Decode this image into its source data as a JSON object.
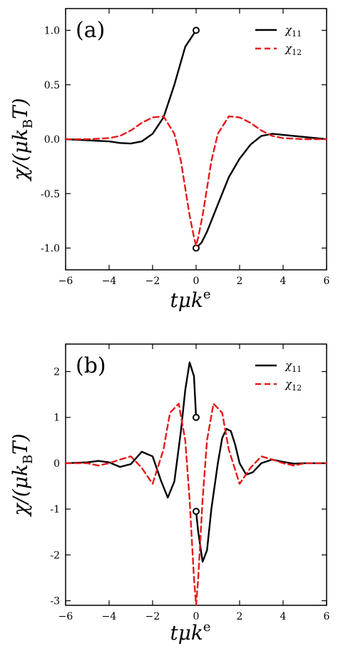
{
  "chart_data": [
    {
      "type": "line",
      "panel_label": "(a)",
      "xlabel": "tμk",
      "xlabel_sup": "e",
      "ylabel": "χ/(μk",
      "ylabel_sub": "B",
      "ylabel_tail": "T)",
      "xlim": [
        -6,
        6
      ],
      "ylim": [
        -1.2,
        1.2
      ],
      "xticks": [
        -6,
        -4,
        -2,
        0,
        2,
        4,
        6
      ],
      "xtick_labels": [
        "−6",
        "−4",
        "−2",
        "0",
        "2",
        "4",
        "6"
      ],
      "yticks": [
        -1.0,
        -0.5,
        0.0,
        0.5,
        1.0
      ],
      "ytick_labels": [
        "-1.0",
        "-0.5",
        "0.0",
        "0.5",
        "1.0"
      ],
      "legend_position": "top-right",
      "grid": false,
      "series": [
        {
          "name": "χ",
          "name_sub": "11",
          "style": "solid",
          "color": "#000000",
          "segments": [
            {
              "x": [
                -6,
                -5,
                -4,
                -3.5,
                -3,
                -2.5,
                -2,
                -1.5,
                -1,
                -0.5,
                0
              ],
              "y": [
                0,
                -0.01,
                -0.02,
                -0.035,
                -0.04,
                -0.02,
                0.05,
                0.2,
                0.5,
                0.85,
                1.0
              ]
            },
            {
              "x": [
                0,
                0.25,
                0.5,
                1,
                1.5,
                2,
                2.5,
                3,
                3.5,
                4,
                5,
                6
              ],
              "y": [
                -1.0,
                -0.95,
                -0.85,
                -0.6,
                -0.35,
                -0.18,
                -0.05,
                0.03,
                0.05,
                0.04,
                0.02,
                0
              ]
            }
          ],
          "open_markers": [
            [
              0,
              1.0
            ],
            [
              0,
              -1.0
            ]
          ]
        },
        {
          "name": "χ",
          "name_sub": "12",
          "style": "dashed",
          "color": "#e41a1c",
          "segments": [
            {
              "x": [
                -6,
                -5,
                -4,
                -3.5,
                -3,
                -2.5,
                -2,
                -1.5,
                -1,
                -0.7,
                -0.5,
                -0.3,
                -0.1,
                0,
                0.1,
                0.3,
                0.5,
                0.7,
                1,
                1.5,
                2,
                2.5,
                3,
                3.5,
                4,
                5,
                6
              ],
              "y": [
                0,
                0,
                0.01,
                0.03,
                0.08,
                0.15,
                0.2,
                0.21,
                0.05,
                -0.2,
                -0.45,
                -0.7,
                -0.9,
                -0.98,
                -0.9,
                -0.7,
                -0.45,
                -0.2,
                0.05,
                0.21,
                0.2,
                0.15,
                0.08,
                0.03,
                0.01,
                0,
                0
              ]
            }
          ],
          "open_markers": []
        }
      ]
    },
    {
      "type": "line",
      "panel_label": "(b)",
      "xlabel": "tμk",
      "xlabel_sup": "e",
      "ylabel": "χ/(μk",
      "ylabel_sub": "B",
      "ylabel_tail": "T)",
      "xlim": [
        -6,
        6
      ],
      "ylim": [
        -3.1,
        2.6
      ],
      "xticks": [
        -6,
        -4,
        -2,
        0,
        2,
        4,
        6
      ],
      "xtick_labels": [
        "−6",
        "−4",
        "−2",
        "0",
        "2",
        "4",
        "6"
      ],
      "yticks": [
        -3,
        -2,
        -1,
        0,
        1,
        2
      ],
      "ytick_labels": [
        "-3",
        "-2",
        "-1",
        "0",
        "1",
        "2"
      ],
      "legend_position": "top-right",
      "grid": false,
      "series": [
        {
          "name": "χ",
          "name_sub": "11",
          "style": "solid",
          "color": "#000000",
          "segments": [
            {
              "x": [
                -6,
                -5,
                -4.5,
                -4,
                -3.5,
                -3,
                -2.5,
                -2,
                -1.6,
                -1.3,
                -1,
                -0.7,
                -0.5,
                -0.3,
                -0.1,
                0
              ],
              "y": [
                0,
                0.02,
                0.05,
                0.02,
                -0.08,
                -0.02,
                0.25,
                0.15,
                -0.4,
                -0.75,
                -0.4,
                0.7,
                1.6,
                2.2,
                1.9,
                1.0
              ]
            },
            {
              "x": [
                0,
                0.1,
                0.3,
                0.5,
                0.7,
                1,
                1.2,
                1.4,
                1.6,
                1.8,
                2,
                2.3,
                2.6,
                3,
                3.5,
                4,
                4.5,
                5,
                6
              ],
              "y": [
                -1.05,
                -1.5,
                -2.15,
                -1.9,
                -1.0,
                0.0,
                0.55,
                0.75,
                0.7,
                0.4,
                0.0,
                -0.25,
                -0.2,
                0.0,
                0.08,
                0.03,
                -0.01,
                0,
                0
              ]
            }
          ],
          "open_markers": [
            [
              0,
              1.0
            ],
            [
              0,
              -1.05
            ]
          ]
        },
        {
          "name": "χ",
          "name_sub": "12",
          "style": "dashed",
          "color": "#e41a1c",
          "segments": [
            {
              "x": [
                -6,
                -5,
                -4.5,
                -4,
                -3.5,
                -3,
                -2.5,
                -2,
                -1.5,
                -1.2,
                -0.8,
                -0.5,
                -0.3,
                -0.1,
                0,
                0.1,
                0.3,
                0.5,
                0.8,
                1.2,
                1.5,
                2,
                2.5,
                3,
                3.5,
                4,
                4.5,
                5,
                6
              ],
              "y": [
                0,
                0,
                -0.05,
                0.0,
                0.08,
                0.15,
                -0.1,
                -0.45,
                0.3,
                1.1,
                1.3,
                0.5,
                -0.8,
                -2.5,
                -3.1,
                -2.5,
                -0.8,
                0.5,
                1.3,
                1.1,
                0.3,
                -0.45,
                -0.1,
                0.15,
                0.08,
                0.0,
                -0.05,
                0,
                0
              ]
            }
          ],
          "open_markers": []
        }
      ]
    }
  ]
}
